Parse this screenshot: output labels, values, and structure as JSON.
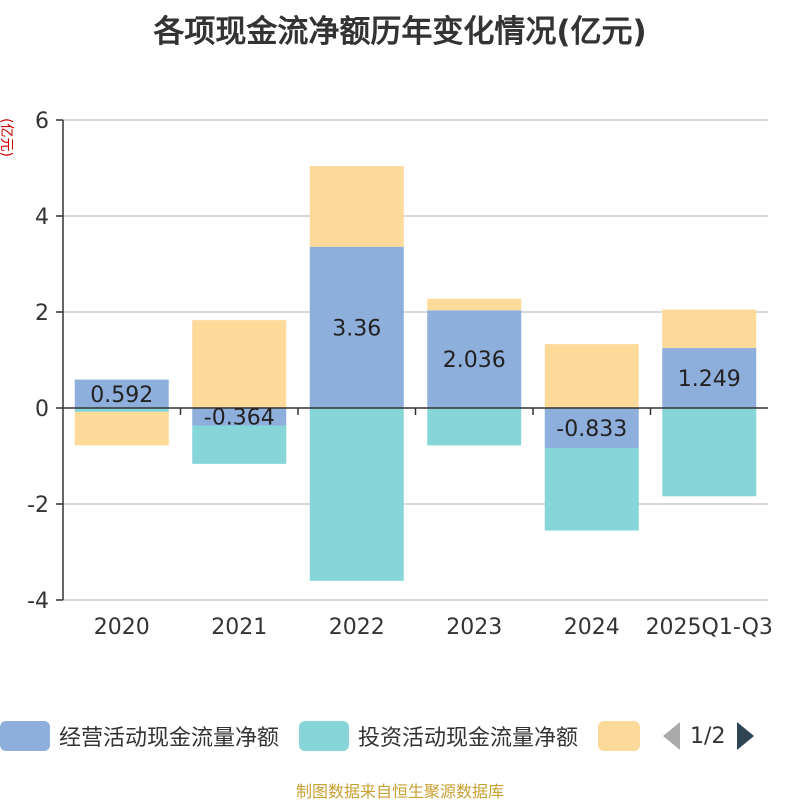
{
  "chart_data": {
    "type": "bar",
    "stacked": true,
    "title": "各项现金流净额历年变化情况(亿元)",
    "ylabel": "(亿元)",
    "xlabel": "",
    "ylim": [
      -4,
      6
    ],
    "yticks": [
      -4,
      -2,
      0,
      2,
      4,
      6
    ],
    "categories": [
      "2020",
      "2021",
      "2022",
      "2023",
      "2024",
      "2025Q1-Q3"
    ],
    "series": [
      {
        "name": "经营活动现金流量净额",
        "color": "#8eaedb",
        "values": [
          0.592,
          -0.364,
          3.36,
          2.036,
          -0.833,
          1.249
        ],
        "labels": [
          "0.592",
          "-0.364",
          "3.36",
          "2.036",
          "-0.833",
          "1.249"
        ]
      },
      {
        "name": "投资活动现金流量净额",
        "color": "#86d5d8",
        "values": [
          -0.08,
          -0.8,
          -3.6,
          -0.78,
          -1.72,
          -1.84
        ]
      },
      {
        "name": "",
        "color": "#fdd99a",
        "values": [
          -0.7,
          1.83,
          1.68,
          0.24,
          1.33,
          0.8
        ]
      }
    ],
    "legend_position": "bottom",
    "legend_page": "1/2"
  },
  "source_text": "制图数据来自恒生聚源数据库"
}
